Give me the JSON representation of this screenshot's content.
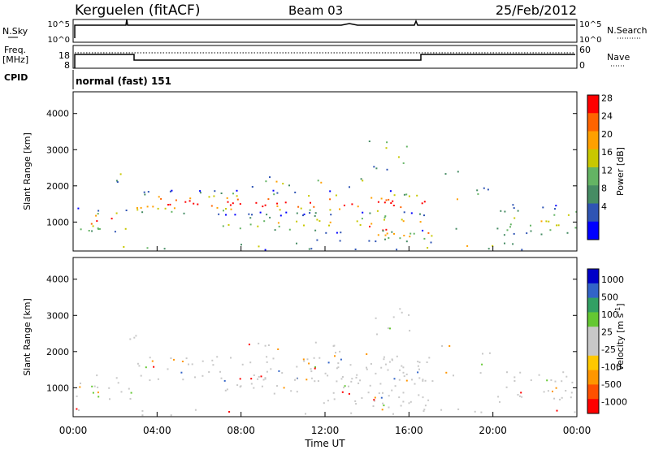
{
  "header": {
    "station": "Kerguelen (fitACF)",
    "beam": "Beam 03",
    "date": "25/Feb/2012"
  },
  "panel_nsky": {
    "left_label": "N.Sky",
    "right_label": "N.Search",
    "left_ticks": [
      "10^5",
      "10^0"
    ],
    "right_ticks": [
      "10^5",
      "10^0"
    ]
  },
  "panel_freq": {
    "left_label_1": "Freq.",
    "left_label_2": "[MHz]",
    "right_label": "Nave",
    "left_ticks": [
      "18",
      "8"
    ],
    "right_ticks": [
      "60",
      "0"
    ]
  },
  "panel_cpid": {
    "label": "CPID",
    "value": "normal (fast) 151"
  },
  "colors": {
    "power": [
      "#0000ff",
      "#2f54b4",
      "#468c64",
      "#64b464",
      "#c8c800",
      "#ffa000",
      "#ff6400",
      "#ff0000"
    ],
    "velocity": [
      "#ff0000",
      "#ff5000",
      "#ff9600",
      "#ffc800",
      "#c8c8c8",
      "#c8c8c8",
      "#64c832",
      "#32a064",
      "#3264c8",
      "#0000c8"
    ]
  },
  "chart_data": [
    {
      "type": "heatmap",
      "name": "Power",
      "ylabel": "Slant Range [km]",
      "yticks": [
        "4000",
        "3000",
        "2000",
        "1000"
      ],
      "ylim": [
        200,
        4600
      ],
      "xlim": [
        0,
        24
      ],
      "colorbar_label": "Power [dB]",
      "colorbar_ticks": [
        "28",
        "24",
        "20",
        "16",
        "12",
        "8",
        "4"
      ],
      "colorbar_range": [
        0,
        32
      ]
    },
    {
      "type": "heatmap",
      "name": "Velocity",
      "ylabel": "Slant Range [km]",
      "yticks": [
        "4000",
        "3000",
        "2000",
        "1000"
      ],
      "ylim": [
        200,
        4600
      ],
      "xlim": [
        0,
        24
      ],
      "xlabel": "Time UT",
      "xticks": [
        "00:00",
        "04:00",
        "08:00",
        "12:00",
        "16:00",
        "20:00",
        "00:00"
      ],
      "colorbar_label": "Velocity [m s",
      "colorbar_label_sup": "-1",
      "colorbar_label_end": "]",
      "colorbar_ticks": [
        "1000",
        "500",
        "100",
        "25",
        "-25",
        "-100",
        "-500",
        "-1000"
      ]
    }
  ]
}
